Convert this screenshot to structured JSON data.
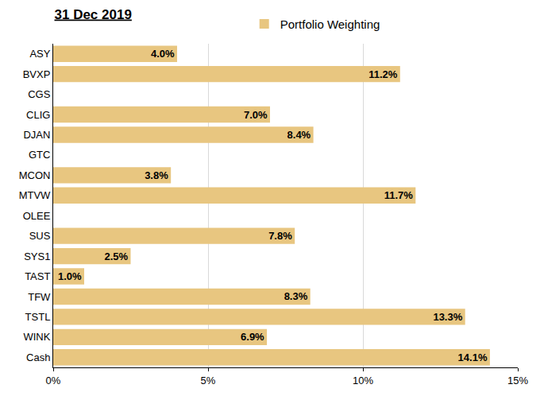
{
  "chart_data": {
    "type": "bar",
    "title": "31 Dec 2019",
    "orientation": "horizontal",
    "categories": [
      "ASY",
      "BVXP",
      "CGS",
      "CLIG",
      "DJAN",
      "GTC",
      "MCON",
      "MTVW",
      "OLEE",
      "SUS",
      "SYS1",
      "TAST",
      "TFW",
      "TSTL",
      "WINK",
      "Cash"
    ],
    "series": [
      {
        "name": "Portfolio Weighting",
        "color": "#e8c680",
        "values": [
          4.0,
          11.2,
          null,
          7.0,
          8.4,
          null,
          3.8,
          11.7,
          null,
          7.8,
          2.5,
          1.0,
          8.3,
          13.3,
          6.9,
          14.1
        ],
        "value_labels": [
          "4.0%",
          "11.2%",
          null,
          "7.0%",
          "8.4%",
          null,
          "3.8%",
          "11.7%",
          null,
          "7.8%",
          "2.5%",
          "1.0%",
          "8.3%",
          "13.3%",
          "6.9%",
          "14.1%"
        ]
      }
    ],
    "xlim": [
      0,
      15
    ],
    "xticks": [
      {
        "value": 0,
        "label": "0%"
      },
      {
        "value": 5,
        "label": "5%"
      },
      {
        "value": 10,
        "label": "10%"
      },
      {
        "value": 15,
        "label": "15%"
      }
    ],
    "grid": true,
    "data_labels": true,
    "legend": "top"
  }
}
